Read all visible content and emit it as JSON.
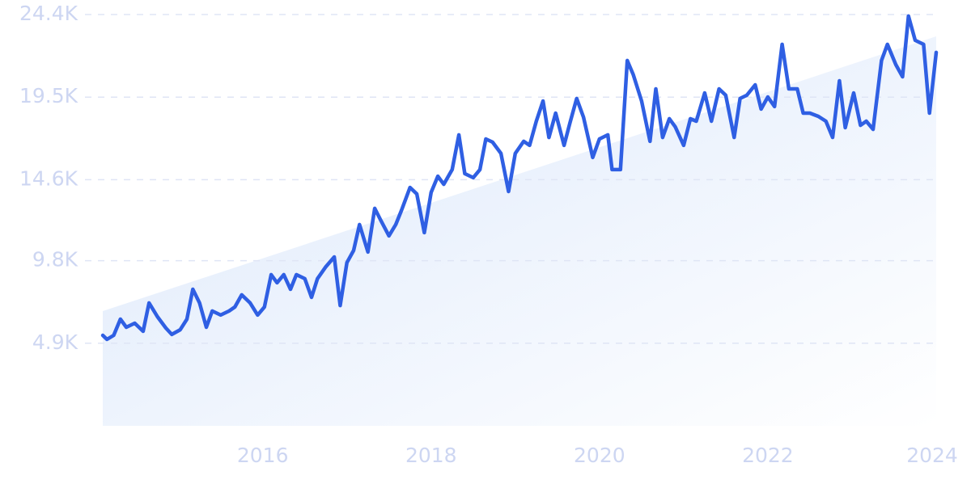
{
  "chart_data": {
    "type": "line",
    "x": [
      2014.1,
      2014.15,
      2014.23,
      2014.31,
      2014.38,
      2014.48,
      2014.58,
      2014.65,
      2014.75,
      2014.85,
      2014.92,
      2015.02,
      2015.1,
      2015.17,
      2015.25,
      2015.33,
      2015.4,
      2015.5,
      2015.6,
      2015.67,
      2015.75,
      2015.85,
      2015.94,
      2016.02,
      2016.1,
      2016.17,
      2016.25,
      2016.33,
      2016.4,
      2016.5,
      2016.58,
      2016.65,
      2016.75,
      2016.85,
      2016.92,
      2017.0,
      2017.08,
      2017.15,
      2017.25,
      2017.33,
      2017.4,
      2017.5,
      2017.58,
      2017.65,
      2017.75,
      2017.83,
      2017.92,
      2018.0,
      2018.08,
      2018.15,
      2018.25,
      2018.33,
      2018.4,
      2018.5,
      2018.58,
      2018.65,
      2018.73,
      2018.83,
      2018.92,
      2019.0,
      2019.1,
      2019.17,
      2019.25,
      2019.33,
      2019.4,
      2019.48,
      2019.58,
      2019.65,
      2019.73,
      2019.81,
      2019.92,
      2020.0,
      2020.1,
      2020.15,
      2020.25,
      2020.33,
      2020.4,
      2020.5,
      2020.6,
      2020.67,
      2020.75,
      2020.83,
      2020.9,
      2021.0,
      2021.08,
      2021.15,
      2021.25,
      2021.33,
      2021.42,
      2021.5,
      2021.6,
      2021.67,
      2021.75,
      2021.85,
      2021.92,
      2022.0,
      2022.08,
      2022.17,
      2022.25,
      2022.35,
      2022.42,
      2022.5,
      2022.6,
      2022.69,
      2022.77,
      2022.85,
      2022.92,
      2023.02,
      2023.1,
      2023.17,
      2023.25,
      2023.35,
      2023.42,
      2023.52,
      2023.6,
      2023.67,
      2023.75,
      2023.85,
      2023.92,
      2024.0
    ],
    "series": [
      {
        "color": "#2f5fe3",
        "values": [
          5370,
          5130,
          5370,
          6330,
          5850,
          6090,
          5610,
          7290,
          6470,
          5800,
          5420,
          5700,
          6330,
          8100,
          7290,
          5850,
          6810,
          6570,
          6810,
          7050,
          7770,
          7290,
          6570,
          7050,
          8970,
          8490,
          8970,
          8100,
          8970,
          8730,
          7620,
          8730,
          9440,
          10020,
          7140,
          9680,
          10400,
          11940,
          10310,
          12900,
          12220,
          11270,
          11940,
          12800,
          14140,
          13760,
          11460,
          13850,
          14810,
          14330,
          15200,
          17260,
          14960,
          14720,
          15200,
          17020,
          16830,
          16160,
          13900,
          16160,
          16880,
          16640,
          18070,
          19270,
          17110,
          18550,
          16640,
          17980,
          19420,
          18310,
          15920,
          17020,
          17260,
          15200,
          15200,
          21670,
          20850,
          19270,
          16880,
          19990,
          17110,
          18220,
          17740,
          16640,
          18220,
          18070,
          19750,
          18070,
          19990,
          19610,
          17110,
          19420,
          19610,
          20230,
          18790,
          19510,
          18940,
          22630,
          19990,
          19990,
          18550,
          18550,
          18360,
          18070,
          17110,
          20470,
          17690,
          19750,
          17830,
          18070,
          17590,
          21670,
          22630,
          21430,
          20710,
          24310,
          22870,
          22630,
          18550,
          22150
        ]
      }
    ],
    "xlim": [
      2014.1,
      2024
    ],
    "xticks": [
      2016,
      2018,
      2020,
      2022,
      2024
    ],
    "ylim": [
      0,
      24400
    ],
    "yticks": [
      {
        "value": 4900,
        "label": "4.9K"
      },
      {
        "value": 9800,
        "label": "9.8K"
      },
      {
        "value": 14600,
        "label": "14.6K"
      },
      {
        "value": 19500,
        "label": "19.5K"
      },
      {
        "value": 24400,
        "label": "24.4K"
      }
    ],
    "grid": true
  }
}
